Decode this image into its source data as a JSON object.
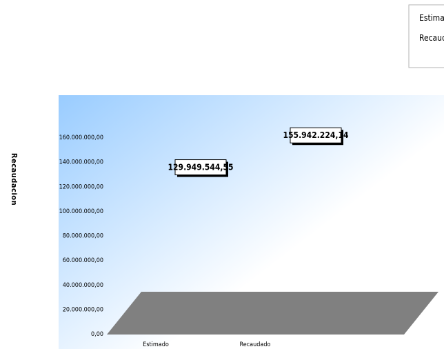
{
  "chart_data": {
    "type": "bar",
    "title": "",
    "xlabel": "",
    "ylabel": "Recaudacion",
    "ylim": [
      0,
      160000000
    ],
    "yticks": [
      0,
      20000000,
      40000000,
      60000000,
      80000000,
      100000000,
      120000000,
      140000000,
      160000000
    ],
    "ytick_labels": [
      "0,00",
      "20.000.000,00",
      "40.000.000,00",
      "60.000.000,00",
      "80.000.000,00",
      "100.000.000,00",
      "120.000.000,00",
      "140.000.000,00",
      "160.000.000,00"
    ],
    "categories": [
      "Estimado",
      "Recaudado"
    ],
    "values": [
      129949544.55,
      155942224.14
    ],
    "data_labels": [
      "129.949.544,55",
      "155.942.224,14"
    ],
    "legend": {
      "placement": "top-right",
      "entries": [
        "Estimado",
        "Recaudado"
      ]
    },
    "style": {
      "floor_color": "#808080",
      "backdrop_start": "#99ccff",
      "backdrop_end": "#ffffff"
    }
  }
}
